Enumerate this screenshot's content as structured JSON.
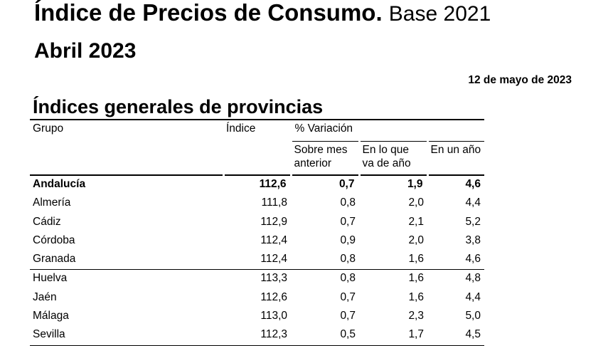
{
  "header": {
    "title_main": "Índice de Precios de Consumo.",
    "title_base": "Base 2021",
    "subtitle": "Abril 2023",
    "date": "12 de mayo de 2023",
    "section_title": "Índices generales de provincias"
  },
  "table": {
    "columns": {
      "grupo": "Grupo",
      "indice": "Índice",
      "variacion": "% Variación",
      "sobre_mes_line1": "Sobre mes",
      "sobre_mes_line2": "anterior",
      "en_lo_que_line1": "En lo que",
      "en_lo_que_line2": "va de año",
      "en_un_ano": "En un año"
    },
    "total": {
      "name": "Andalucía",
      "indice": "112,6",
      "mes": "0,7",
      "ano_actual": "1,9",
      "anual": "4,6"
    },
    "rows": [
      {
        "name": "Almería",
        "indice": "111,8",
        "mes": "0,8",
        "ano_actual": "2,0",
        "anual": "4,4"
      },
      {
        "name": "Cádiz",
        "indice": "112,9",
        "mes": "0,7",
        "ano_actual": "2,1",
        "anual": "5,2"
      },
      {
        "name": "Córdoba",
        "indice": "112,4",
        "mes": "0,9",
        "ano_actual": "2,0",
        "anual": "3,8"
      },
      {
        "name": "Granada",
        "indice": "112,4",
        "mes": "0,8",
        "ano_actual": "1,6",
        "anual": "4,6"
      },
      {
        "name": "Huelva",
        "indice": "113,3",
        "mes": "0,8",
        "ano_actual": "1,6",
        "anual": "4,8"
      },
      {
        "name": "Jaén",
        "indice": "112,6",
        "mes": "0,7",
        "ano_actual": "1,6",
        "anual": "4,4"
      },
      {
        "name": "Málaga",
        "indice": "113,0",
        "mes": "0,7",
        "ano_actual": "2,3",
        "anual": "5,0"
      },
      {
        "name": "Sevilla",
        "indice": "112,3",
        "mes": "0,5",
        "ano_actual": "1,7",
        "anual": "4,5"
      }
    ]
  }
}
